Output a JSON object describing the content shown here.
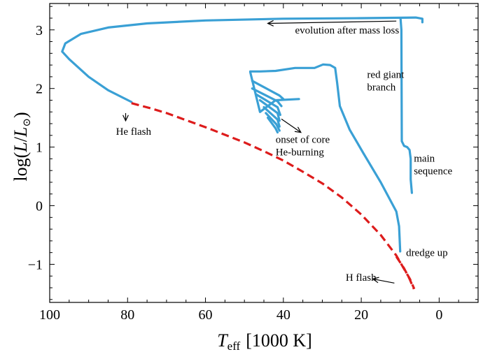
{
  "chart_data": {
    "type": "line",
    "xlabel": {
      "symbol": "T",
      "sub": "eff",
      "unit": "[1000 K]"
    },
    "ylabel": {
      "prefix": "log(",
      "L": "L",
      "slash": "/",
      "Lsun": "L",
      "sun": "⊙",
      "suffix": ")"
    },
    "xlim": [
      100,
      -10
    ],
    "ylim": [
      -1.65,
      3.45
    ],
    "x_ticks": [
      100,
      80,
      60,
      40,
      20,
      0
    ],
    "x_tick_labels": [
      "100",
      "80",
      "60",
      "40",
      "20",
      "0"
    ],
    "y_ticks": [
      3,
      2,
      1,
      0,
      -1
    ],
    "y_tick_labels": [
      "3",
      "2",
      "1",
      "0",
      "−1"
    ],
    "grid": false,
    "colors": {
      "track": "#3aa0d5",
      "flash": "#dd1c1c"
    },
    "series": [
      {
        "style": "solid",
        "color": "#3aa0d5",
        "segments": [
          [
            [
              7.0,
              0.22
            ],
            [
              7.3,
              0.45
            ],
            [
              7.3,
              0.8
            ],
            [
              7.6,
              0.95
            ],
            [
              8.2,
              1.0
            ],
            [
              9.0,
              1.02
            ],
            [
              9.6,
              1.1
            ],
            [
              9.7,
              3.0
            ],
            [
              9.9,
              3.18
            ]
          ],
          [
            [
              10.0,
              -0.78
            ],
            [
              10.3,
              -0.35
            ],
            [
              11.0,
              -0.1
            ],
            [
              15.0,
              0.4
            ],
            [
              19.5,
              0.9
            ],
            [
              23.0,
              1.3
            ],
            [
              25.5,
              1.7
            ],
            [
              26.2,
              2.1
            ],
            [
              26.7,
              2.35
            ],
            [
              28.0,
              2.4
            ],
            [
              29.8,
              2.41
            ],
            [
              32.0,
              2.35
            ],
            [
              37.0,
              2.35
            ],
            [
              42.0,
              2.3
            ],
            [
              46.0,
              2.29
            ],
            [
              48.5,
              2.29
            ]
          ],
          [
            [
              36.0,
              1.82
            ],
            [
              42.0,
              1.8
            ],
            [
              46.0,
              1.6
            ],
            [
              48.5,
              2.28
            ]
          ],
          [
            [
              48.0,
              2.13
            ],
            [
              41.0,
              1.88
            ],
            [
              40.0,
              1.82
            ]
          ],
          [
            [
              48.0,
              2.0
            ],
            [
              41.5,
              1.78
            ],
            [
              40.5,
              1.7
            ]
          ],
          [
            [
              47.0,
              1.9
            ],
            [
              41.5,
              1.68
            ],
            [
              40.8,
              1.55
            ]
          ],
          [
            [
              46.0,
              1.8
            ],
            [
              41.5,
              1.58
            ],
            [
              41.0,
              1.45
            ]
          ],
          [
            [
              45.0,
              1.68
            ],
            [
              41.5,
              1.47
            ],
            [
              41.0,
              1.35
            ]
          ],
          [
            [
              44.5,
              1.58
            ],
            [
              41.8,
              1.39
            ],
            [
              41.0,
              1.28
            ]
          ],
          [
            [
              44.0,
              1.5
            ],
            [
              42.0,
              1.32
            ],
            [
              41.5,
              1.25
            ]
          ],
          [
            [
              79.0,
              1.77
            ],
            [
              85.0,
              1.97
            ],
            [
              90.0,
              2.2
            ],
            [
              95.0,
              2.5
            ],
            [
              96.8,
              2.63
            ],
            [
              96.0,
              2.77
            ],
            [
              92.0,
              2.93
            ],
            [
              85.0,
              3.04
            ],
            [
              75.0,
              3.11
            ],
            [
              60.0,
              3.16
            ],
            [
              40.0,
              3.19
            ],
            [
              20.0,
              3.2
            ],
            [
              6.0,
              3.21
            ],
            [
              4.3,
              3.19
            ],
            [
              4.3,
              3.13
            ]
          ]
        ]
      },
      {
        "style": "dashed",
        "color": "#dd1c1c",
        "segments": [
          [
            [
              79.0,
              1.75
            ],
            [
              74.0,
              1.66
            ],
            [
              70.0,
              1.58
            ],
            [
              65.0,
              1.46
            ],
            [
              60.0,
              1.34
            ],
            [
              55.0,
              1.21
            ],
            [
              50.0,
              1.08
            ],
            [
              45.0,
              0.93
            ],
            [
              40.0,
              0.77
            ],
            [
              35.0,
              0.58
            ],
            [
              30.0,
              0.38
            ],
            [
              25.0,
              0.14
            ],
            [
              20.0,
              -0.15
            ],
            [
              15.0,
              -0.5
            ],
            [
              11.0,
              -0.85
            ],
            [
              9.0,
              -1.08
            ],
            [
              7.5,
              -1.25
            ],
            [
              6.4,
              -1.42
            ]
          ],
          [
            [
              11.0,
              -0.87
            ],
            [
              9.0,
              -1.07
            ],
            [
              7.6,
              -1.25
            ],
            [
              6.5,
              -1.42
            ]
          ]
        ]
      }
    ],
    "annotations": [
      {
        "lines": [
          "evolution after mass loss"
        ],
        "x": 37.0,
        "y": 2.94
      },
      {
        "lines": [
          "red giant",
          "branch"
        ],
        "x": 18.5,
        "y": 2.18
      },
      {
        "lines": [
          "He flash"
        ],
        "x": 83.0,
        "y": 1.21
      },
      {
        "lines": [
          "onset of core",
          "He-burning"
        ],
        "x": 42.0,
        "y": 1.07
      },
      {
        "lines": [
          "main",
          "sequence"
        ],
        "x": 6.5,
        "y": 0.75
      },
      {
        "lines": [
          "dredge up"
        ],
        "x": 8.5,
        "y": -0.86
      },
      {
        "lines": [
          "H flash"
        ],
        "x": 24.0,
        "y": -1.28
      }
    ],
    "arrows": [
      {
        "from": [
          11.0,
          3.15
        ],
        "to": [
          44.0,
          3.11
        ]
      },
      {
        "from": [
          80.5,
          1.58
        ],
        "to": [
          80.5,
          1.45
        ]
      },
      {
        "from": [
          40.5,
          1.48
        ],
        "to": [
          35.5,
          1.25
        ]
      },
      {
        "from": [
          11.5,
          -1.32
        ],
        "to": [
          17.0,
          -1.25
        ]
      }
    ]
  }
}
